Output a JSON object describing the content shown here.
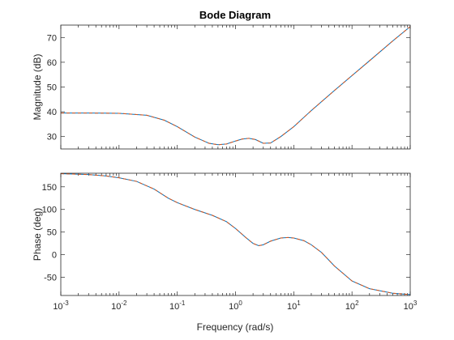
{
  "chart_data": {
    "type": "line",
    "title": "Bode Diagram",
    "xlabel": "Frequency (rad/s)",
    "x_scale": "log",
    "xlim": [
      0.001,
      1000
    ],
    "x_ticks": [
      {
        "value": 0.001,
        "base": "10",
        "exp": "-3"
      },
      {
        "value": 0.01,
        "base": "10",
        "exp": "-2"
      },
      {
        "value": 0.1,
        "base": "10",
        "exp": "-1"
      },
      {
        "value": 1,
        "base": "10",
        "exp": "0"
      },
      {
        "value": 10,
        "base": "10",
        "exp": "1"
      },
      {
        "value": 100,
        "base": "10",
        "exp": "2"
      },
      {
        "value": 1000,
        "base": "10",
        "exp": "3"
      }
    ],
    "series_colors": [
      "#0072BD",
      "#D95319"
    ],
    "series_styles": [
      "solid",
      "dashed"
    ],
    "panels": [
      {
        "ylabel": "Magnitude (dB)",
        "ylim": [
          25,
          75
        ],
        "yticks": [
          30,
          40,
          50,
          60,
          70
        ],
        "x": [
          0.001,
          0.003,
          0.01,
          0.03,
          0.06,
          0.1,
          0.2,
          0.35,
          0.5,
          0.7,
          1.0,
          1.3,
          1.7,
          2.2,
          3.0,
          4.0,
          6.0,
          10,
          20,
          50,
          100,
          200,
          500,
          1000
        ],
        "y": [
          39.5,
          39.5,
          39.4,
          38.6,
          36.6,
          34.0,
          29.8,
          27.3,
          26.7,
          27.0,
          28.2,
          29.0,
          29.3,
          28.8,
          27.3,
          27.4,
          30.0,
          34.0,
          40.5,
          48.6,
          54.6,
          60.6,
          68.6,
          74.4
        ]
      },
      {
        "ylabel": "Phase (deg)",
        "ylim": [
          -90,
          180
        ],
        "yticks": [
          -50,
          0,
          50,
          100,
          150
        ],
        "x": [
          0.001,
          0.003,
          0.006,
          0.01,
          0.02,
          0.04,
          0.07,
          0.1,
          0.2,
          0.4,
          0.7,
          1.0,
          1.5,
          2.0,
          2.5,
          3.0,
          4.0,
          6.0,
          8.0,
          10,
          15,
          20,
          30,
          50,
          100,
          200,
          500,
          1000
        ],
        "y": [
          179,
          177,
          174,
          170,
          162,
          145,
          125,
          115,
          100,
          87,
          73,
          58,
          38,
          25,
          20,
          22,
          30,
          37,
          38,
          37,
          31,
          22,
          5,
          -25,
          -58,
          -75,
          -85,
          -88
        ]
      }
    ]
  }
}
